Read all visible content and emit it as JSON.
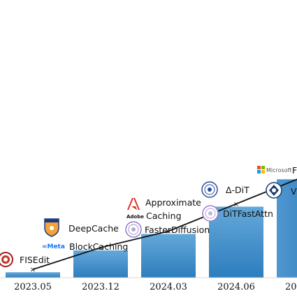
{
  "chart_data": {
    "type": "bar",
    "title": "",
    "xlabel": "",
    "ylabel": "",
    "categories": [
      "2023.05",
      "2023.12",
      "2024.03",
      "2024.06",
      "20"
    ],
    "values": [
      1,
      5,
      8,
      13,
      18
    ],
    "trend_line": [
      1,
      5,
      8,
      13,
      18
    ],
    "ylim": [
      0,
      32
    ],
    "colors": {
      "bar_top": "#62a7d8",
      "bar_bottom": "#2f7fbf",
      "line": "#111111"
    },
    "annotations": [
      {
        "category": "2023.05",
        "method": "FISEdit",
        "org_icon": "pku-seal-icon"
      },
      {
        "category": "2023.12",
        "method": "DeepCache",
        "org_icon": "nus-crest-icon"
      },
      {
        "category": "2023.12",
        "method": "BlockCaching",
        "org_icon": "meta-logo-icon",
        "org_text": "Meta"
      },
      {
        "category": "2024.03",
        "method": "Approximate Caching",
        "org_icon": "adobe-logo-icon",
        "org_text": "Adobe"
      },
      {
        "category": "2024.03",
        "method": "FasterDiffusion",
        "org_icon": "university-seal-icon"
      },
      {
        "category": "2024.06",
        "method": "Δ-DiT",
        "org_icon": "university-seal-icon"
      },
      {
        "category": "2024.06",
        "method": "DiTFastAttn",
        "org_icon": "tsinghua-seal-icon"
      },
      {
        "category": "20",
        "method": "",
        "org_icon": "microsoft-logo-icon",
        "org_text": "Microsoft"
      },
      {
        "category": "20",
        "method": "",
        "org_icon": "university-crest-icon"
      }
    ]
  },
  "labels": {
    "fisedit": "FISEdit",
    "deepcache": "DeepCache",
    "blockcaching": "BlockCaching",
    "approx_line1": "Approximate",
    "approx_line2": "Caching",
    "fasterdiffusion": "FasterDiffusion",
    "deltadit": "Δ-DiT",
    "ditfastattn": "DiTFastAttn",
    "partial_right": "V",
    "meta": "∞Meta",
    "adobe": "Adobe",
    "microsoft": "Microsoft",
    "ms_tail": "F"
  }
}
